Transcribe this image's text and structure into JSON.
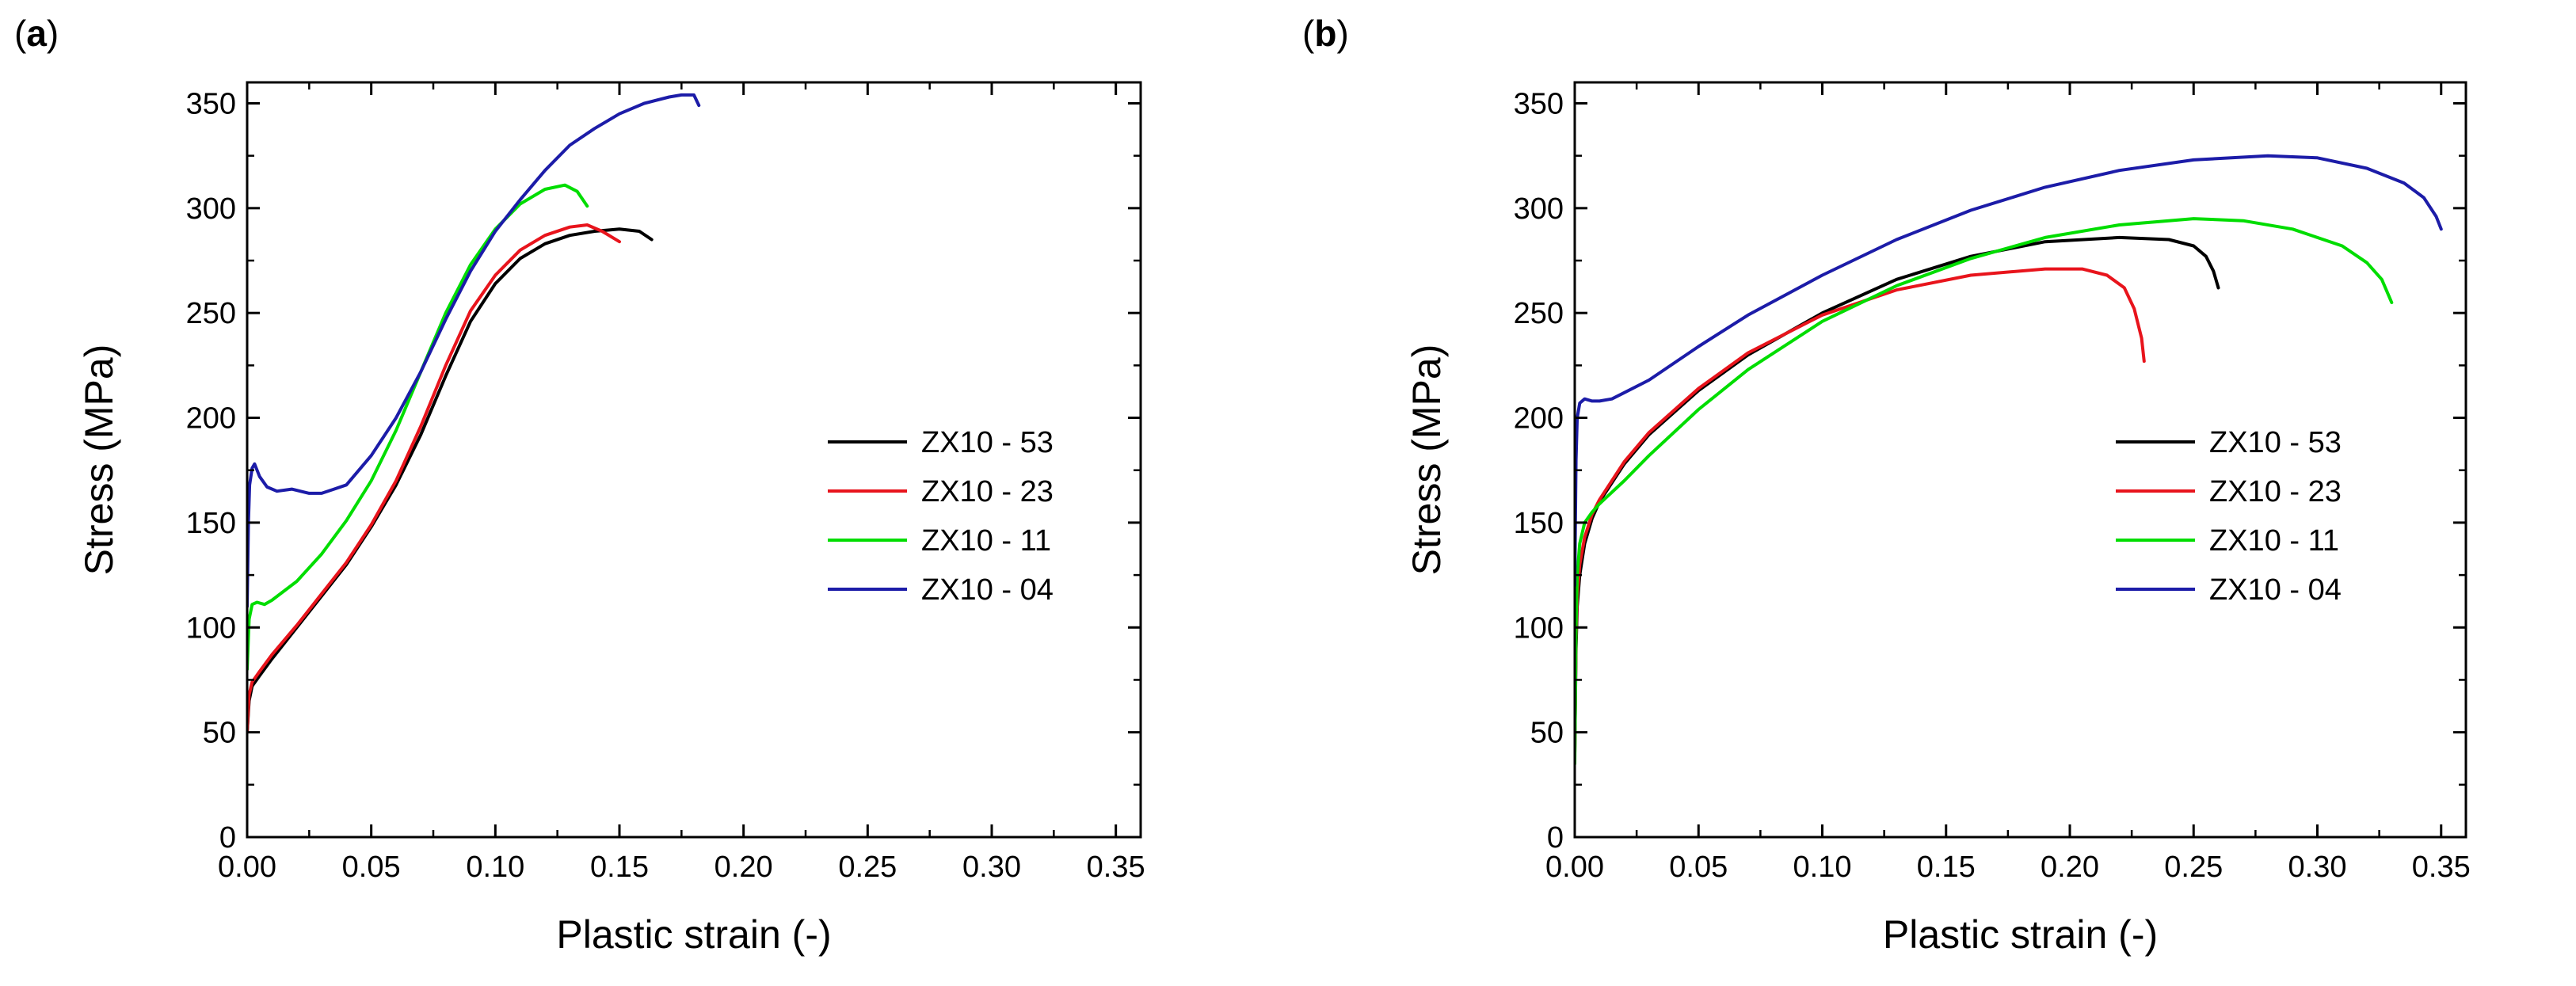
{
  "chart_data": [
    {
      "panel_label": "a",
      "type": "line",
      "title": "",
      "xlabel": "Plastic strain (-)",
      "ylabel": "Stress (MPa)",
      "xlim": [
        0,
        0.36
      ],
      "ylim": [
        0,
        360
      ],
      "xticks": [
        0.0,
        0.05,
        0.1,
        0.15,
        0.2,
        0.25,
        0.3,
        0.35
      ],
      "xtick_labels": [
        "0.00",
        "0.05",
        "0.10",
        "0.15",
        "0.20",
        "0.25",
        "0.30",
        "0.35"
      ],
      "yticks": [
        0,
        50,
        100,
        150,
        200,
        250,
        300,
        350
      ],
      "ytick_labels": [
        "0",
        "50",
        "100",
        "150",
        "200",
        "250",
        "300",
        "350"
      ],
      "legend_position": "center-right",
      "series": [
        {
          "name": "ZX10 - 53",
          "color": "#000000",
          "x": [
            0,
            0.0008,
            0.002,
            0.005,
            0.01,
            0.02,
            0.03,
            0.04,
            0.05,
            0.06,
            0.07,
            0.08,
            0.09,
            0.1,
            0.11,
            0.12,
            0.13,
            0.14,
            0.15,
            0.158,
            0.163
          ],
          "y": [
            50,
            65,
            72,
            77,
            85,
            100,
            115,
            130,
            148,
            168,
            192,
            220,
            246,
            264,
            276,
            283,
            287,
            289,
            290,
            289,
            285
          ]
        },
        {
          "name": "ZX10 - 23",
          "color": "#e8141c",
          "x": [
            0,
            0.0008,
            0.002,
            0.005,
            0.01,
            0.02,
            0.03,
            0.04,
            0.05,
            0.06,
            0.07,
            0.08,
            0.09,
            0.1,
            0.11,
            0.12,
            0.13,
            0.137,
            0.143,
            0.15
          ],
          "y": [
            50,
            68,
            74,
            79,
            87,
            101,
            116,
            131,
            149,
            170,
            196,
            225,
            251,
            268,
            280,
            287,
            291,
            292,
            289,
            284
          ]
        },
        {
          "name": "ZX10 - 11",
          "color": "#00dd00",
          "x": [
            0,
            0.0008,
            0.002,
            0.004,
            0.007,
            0.01,
            0.02,
            0.03,
            0.04,
            0.05,
            0.06,
            0.07,
            0.08,
            0.09,
            0.1,
            0.11,
            0.12,
            0.128,
            0.133,
            0.137
          ],
          "y": [
            80,
            104,
            111,
            112,
            111,
            113,
            122,
            135,
            151,
            170,
            194,
            222,
            250,
            273,
            290,
            302,
            309,
            311,
            308,
            301
          ]
        },
        {
          "name": "ZX10 - 04",
          "color": "#1c1ca8",
          "x": [
            0,
            0.0005,
            0.001,
            0.002,
            0.003,
            0.005,
            0.008,
            0.012,
            0.018,
            0.025,
            0.03,
            0.035,
            0.04,
            0.05,
            0.06,
            0.07,
            0.08,
            0.09,
            0.1,
            0.11,
            0.12,
            0.13,
            0.14,
            0.15,
            0.16,
            0.17,
            0.175,
            0.18,
            0.182
          ],
          "y": [
            110,
            150,
            168,
            176,
            178,
            172,
            167,
            165,
            166,
            164,
            164,
            166,
            168,
            182,
            200,
            222,
            247,
            270,
            289,
            304,
            318,
            330,
            338,
            345,
            350,
            353,
            354,
            354,
            349
          ]
        }
      ]
    },
    {
      "panel_label": "b",
      "type": "line",
      "title": "",
      "xlabel": "Plastic strain (-)",
      "ylabel": "Stress (MPa)",
      "xlim": [
        0,
        0.36
      ],
      "ylim": [
        0,
        360
      ],
      "xticks": [
        0.0,
        0.05,
        0.1,
        0.15,
        0.2,
        0.25,
        0.3,
        0.35
      ],
      "xtick_labels": [
        "0.00",
        "0.05",
        "0.10",
        "0.15",
        "0.20",
        "0.25",
        "0.30",
        "0.35"
      ],
      "yticks": [
        0,
        50,
        100,
        150,
        200,
        250,
        300,
        350
      ],
      "ytick_labels": [
        "0",
        "50",
        "100",
        "150",
        "200",
        "250",
        "300",
        "350"
      ],
      "legend_position": "center-right",
      "series": [
        {
          "name": "ZX10 - 53",
          "color": "#000000",
          "x": [
            0,
            0.0005,
            0.001,
            0.002,
            0.004,
            0.007,
            0.01,
            0.02,
            0.03,
            0.05,
            0.07,
            0.1,
            0.13,
            0.16,
            0.19,
            0.22,
            0.24,
            0.25,
            0.255,
            0.258,
            0.26
          ],
          "y": [
            40,
            90,
            110,
            125,
            140,
            152,
            160,
            178,
            192,
            213,
            230,
            250,
            266,
            277,
            284,
            286,
            285,
            282,
            277,
            270,
            262
          ]
        },
        {
          "name": "ZX10 - 23",
          "color": "#e8141c",
          "x": [
            0,
            0.0005,
            0.001,
            0.002,
            0.004,
            0.007,
            0.01,
            0.02,
            0.03,
            0.05,
            0.07,
            0.1,
            0.13,
            0.16,
            0.19,
            0.205,
            0.215,
            0.222,
            0.226,
            0.229,
            0.23
          ],
          "y": [
            40,
            95,
            115,
            130,
            143,
            154,
            161,
            179,
            193,
            214,
            231,
            249,
            261,
            268,
            271,
            271,
            268,
            262,
            252,
            238,
            227
          ]
        },
        {
          "name": "ZX10 - 11",
          "color": "#00dd00",
          "x": [
            0,
            0.0005,
            0.001,
            0.002,
            0.004,
            0.007,
            0.01,
            0.02,
            0.03,
            0.05,
            0.07,
            0.1,
            0.13,
            0.16,
            0.19,
            0.22,
            0.25,
            0.27,
            0.29,
            0.31,
            0.32,
            0.326,
            0.33
          ],
          "y": [
            35,
            100,
            125,
            140,
            150,
            155,
            159,
            170,
            182,
            204,
            223,
            246,
            263,
            276,
            286,
            292,
            295,
            294,
            290,
            282,
            274,
            266,
            255
          ]
        },
        {
          "name": "ZX10 - 04",
          "color": "#1c1ca8",
          "x": [
            0,
            0.0005,
            0.001,
            0.002,
            0.004,
            0.007,
            0.01,
            0.015,
            0.02,
            0.03,
            0.05,
            0.07,
            0.1,
            0.13,
            0.16,
            0.19,
            0.22,
            0.25,
            0.28,
            0.3,
            0.32,
            0.335,
            0.343,
            0.348,
            0.35
          ],
          "y": [
            120,
            180,
            200,
            207,
            209,
            208,
            208,
            209,
            212,
            218,
            234,
            249,
            268,
            285,
            299,
            310,
            318,
            323,
            325,
            324,
            319,
            312,
            305,
            296,
            290
          ]
        }
      ]
    }
  ]
}
